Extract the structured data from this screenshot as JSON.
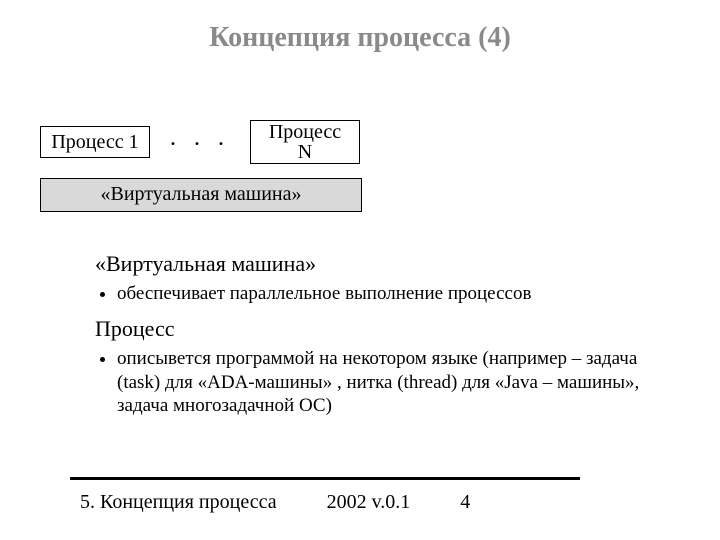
{
  "title": "Концепция процесса (4)",
  "diagram": {
    "box1": "Процесс 1",
    "dots": ". . .",
    "boxN_line1": "Процесс",
    "boxN_line2": "N",
    "vm": "«Виртуальная машина»"
  },
  "body": {
    "vm_heading": "«Виртуальная машина»",
    "vm_bullet": "обеспечивает параллельное выполнение процессов",
    "proc_heading": "Процесс",
    "proc_bullet": "описывется программой на некотором языке (например – задача (task) для «ADA-машины» , нитка (thread) для «Java – машины», задача многозадачной ОС)"
  },
  "footer": {
    "left": "5. Концепция процесса",
    "center": "2002 v.0.1",
    "page": "4"
  },
  "colors": {
    "title_color": "#8a8a8a",
    "vm_box_bg": "#d9d9d9",
    "border": "#000000",
    "background": "#ffffff"
  },
  "typography": {
    "title_fontsize": 28,
    "body_fontsize": 20,
    "heading_fontsize": 22,
    "footer_fontsize": 20,
    "font_family": "Times New Roman"
  }
}
